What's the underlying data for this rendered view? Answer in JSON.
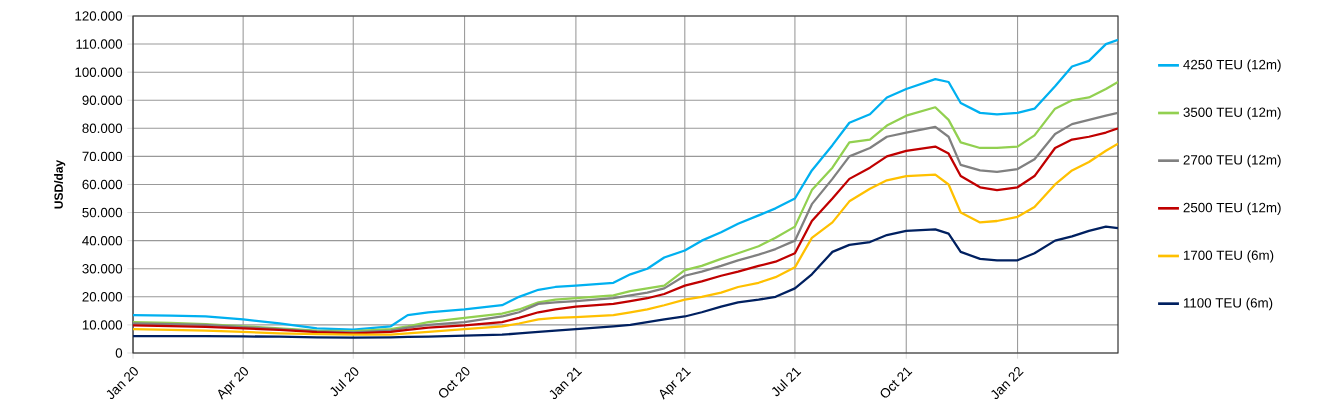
{
  "chart_data": {
    "type": "line",
    "ylabel": "USD/day",
    "x": [
      "2020-01-01",
      "2020-02-01",
      "2020-03-01",
      "2020-04-01",
      "2020-05-01",
      "2020-06-01",
      "2020-07-01",
      "2020-08-01",
      "2020-08-15",
      "2020-09-01",
      "2020-10-01",
      "2020-11-01",
      "2020-11-15",
      "2020-12-01",
      "2020-12-15",
      "2021-01-01",
      "2021-02-01",
      "2021-02-15",
      "2021-03-01",
      "2021-03-15",
      "2021-04-01",
      "2021-04-15",
      "2021-05-01",
      "2021-05-15",
      "2021-06-01",
      "2021-06-15",
      "2021-07-01",
      "2021-07-15",
      "2021-08-01",
      "2021-08-15",
      "2021-09-01",
      "2021-09-15",
      "2021-10-01",
      "2021-10-25",
      "2021-11-05",
      "2021-11-15",
      "2021-12-01",
      "2021-12-15",
      "2022-01-01",
      "2022-01-15",
      "2022-02-01",
      "2022-02-15",
      "2022-03-01",
      "2022-03-15",
      "2022-03-25"
    ],
    "series": [
      {
        "name": "4250 TEU (12m)",
        "color": "#00b0f0",
        "values": [
          13500,
          13300,
          13000,
          12000,
          10500,
          8800,
          8300,
          9500,
          13500,
          14500,
          15500,
          17000,
          20000,
          22500,
          23500,
          24000,
          25000,
          28000,
          30000,
          34000,
          36500,
          40000,
          43000,
          46000,
          49000,
          51500,
          55000,
          65000,
          74000,
          82000,
          85000,
          91000,
          94000,
          97500,
          96500,
          89000,
          85500,
          85000,
          85500,
          87000,
          95000,
          102000,
          104000,
          110000,
          111500
        ]
      },
      {
        "name": "3500 TEU (12m)",
        "color": "#92d050",
        "values": [
          11000,
          10700,
          10300,
          9500,
          8800,
          8000,
          7800,
          8500,
          9500,
          11000,
          12500,
          14000,
          15500,
          18000,
          19000,
          19500,
          20500,
          22000,
          23000,
          24000,
          29500,
          31000,
          33500,
          35500,
          38000,
          41000,
          45000,
          58000,
          66000,
          75000,
          76000,
          81000,
          84500,
          87500,
          83000,
          75000,
          73000,
          73000,
          73500,
          77500,
          87000,
          90000,
          91000,
          94000,
          96500
        ]
      },
      {
        "name": "2700 TEU (12m)",
        "color": "#808080",
        "values": [
          10500,
          10300,
          10000,
          9200,
          8500,
          7700,
          7300,
          8000,
          9000,
          10000,
          11000,
          13000,
          14500,
          17500,
          18000,
          18500,
          19500,
          20500,
          21500,
          23000,
          27500,
          29000,
          31000,
          33000,
          35000,
          37000,
          40000,
          53000,
          62000,
          70000,
          73000,
          77000,
          78500,
          80500,
          77000,
          67000,
          65000,
          64500,
          65500,
          69000,
          78000,
          81500,
          83000,
          84500,
          85500
        ]
      },
      {
        "name": "2500 TEU (12m)",
        "color": "#c00000",
        "values": [
          9800,
          9600,
          9300,
          8800,
          8200,
          7400,
          7000,
          7500,
          8200,
          9000,
          9800,
          11000,
          12500,
          14500,
          15500,
          16500,
          17500,
          18500,
          19500,
          21000,
          24000,
          25500,
          27500,
          29000,
          31000,
          32500,
          35500,
          47000,
          55000,
          62000,
          66000,
          70000,
          72000,
          73500,
          71000,
          63000,
          59000,
          58000,
          59000,
          63000,
          73000,
          76000,
          77000,
          78500,
          80000
        ]
      },
      {
        "name": "1700 TEU (6m)",
        "color": "#ffc000",
        "values": [
          8500,
          8200,
          8000,
          7500,
          7000,
          6700,
          6500,
          6500,
          7000,
          7500,
          8500,
          9500,
          10500,
          12000,
          12500,
          12800,
          13500,
          14500,
          15500,
          17000,
          19000,
          20000,
          21500,
          23500,
          25000,
          27000,
          30500,
          41000,
          46500,
          54000,
          58500,
          61500,
          63000,
          63500,
          60000,
          50000,
          46500,
          47000,
          48500,
          52000,
          60000,
          65000,
          68000,
          72000,
          74500
        ]
      },
      {
        "name": "1100 TEU (6m)",
        "color": "#002060",
        "values": [
          6000,
          6000,
          6000,
          5900,
          5800,
          5600,
          5500,
          5600,
          5700,
          5800,
          6200,
          6500,
          7000,
          7500,
          8000,
          8500,
          9500,
          10000,
          11000,
          12000,
          13000,
          14500,
          16500,
          18000,
          19000,
          20000,
          23000,
          28000,
          36000,
          38500,
          39500,
          42000,
          43500,
          44000,
          42500,
          36000,
          33500,
          33000,
          33000,
          35500,
          40000,
          41500,
          43500,
          45000,
          44500
        ]
      }
    ],
    "xlim": [
      "2020-01-01",
      "2022-03-25"
    ],
    "xticks": [
      {
        "value": "2020-01-01",
        "label": "Jan 20"
      },
      {
        "value": "2020-04-01",
        "label": "Apr 20"
      },
      {
        "value": "2020-07-01",
        "label": "Jul 20"
      },
      {
        "value": "2020-10-01",
        "label": "Oct 20"
      },
      {
        "value": "2021-01-01",
        "label": "Jan 21"
      },
      {
        "value": "2021-04-01",
        "label": "Apr 21"
      },
      {
        "value": "2021-07-01",
        "label": "Jul 21"
      },
      {
        "value": "2021-10-01",
        "label": "Oct 21"
      },
      {
        "value": "2022-01-01",
        "label": "Jan 22"
      }
    ],
    "ylim": [
      0,
      120000
    ],
    "yticks": [
      0,
      {
        "value": 10000,
        "label": "10.000"
      },
      {
        "value": 20000,
        "label": "20.000"
      },
      {
        "value": 30000,
        "label": "30.000"
      },
      {
        "value": 40000,
        "label": "40.000"
      },
      {
        "value": 50000,
        "label": "50.000"
      },
      {
        "value": 60000,
        "label": "60.000"
      },
      {
        "value": 70000,
        "label": "70.000"
      },
      {
        "value": 80000,
        "label": "80.000"
      },
      {
        "value": 90000,
        "label": "90.000"
      },
      {
        "value": 100000,
        "label": "100.000"
      },
      {
        "value": 110000,
        "label": "110.000"
      },
      {
        "value": 120000,
        "label": "120.000"
      }
    ],
    "grid": true,
    "legend": "right",
    "line_style": "solid",
    "marker": "none"
  }
}
